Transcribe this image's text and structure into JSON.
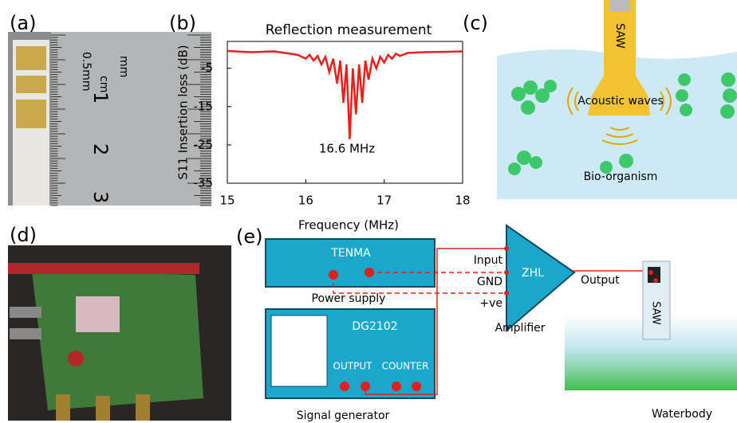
{
  "panels": {
    "a": "(a)",
    "b": "(b)",
    "c": "(c)",
    "d": "(d)",
    "e": "(e)"
  },
  "ruler": {
    "unit_mm": "mm",
    "unit_cm": "cm",
    "fine": "0.5mm",
    "numbers": [
      "1",
      "2",
      "3"
    ]
  },
  "chart_data": {
    "type": "line",
    "title": "Reflection measurement",
    "x_label": "Frequency (MHz)",
    "y_label": "S11 Insertion loss (dB)",
    "annotation": "16.6 MHz",
    "series": [
      {
        "color": "#e8201c",
        "x": [
          15.0,
          15.3,
          15.6,
          15.8,
          15.9,
          16.0,
          16.05,
          16.1,
          16.15,
          16.2,
          16.25,
          16.3,
          16.35,
          16.4,
          16.44,
          16.48,
          16.52,
          16.56,
          16.6,
          16.64,
          16.68,
          16.72,
          16.76,
          16.8,
          16.85,
          16.9,
          16.95,
          17.0,
          17.05,
          17.1,
          17.15,
          17.2,
          17.3,
          17.5,
          17.8,
          18.0
        ],
        "values": [
          -0.5,
          -0.8,
          -0.6,
          -1.2,
          -1.5,
          -2.5,
          -1.5,
          -3,
          -1.8,
          -4,
          -2,
          -6,
          -2.5,
          -9,
          -3,
          -14,
          -4,
          -23.5,
          -5,
          -17,
          -4,
          -14,
          -3,
          -8,
          -2.5,
          -5,
          -2,
          -3.5,
          -1.5,
          -2.5,
          -1.2,
          -1.8,
          -1,
          -0.8,
          -0.7,
          -0.6
        ]
      }
    ],
    "xlim": [
      15,
      18
    ],
    "xticks": [
      15,
      16,
      17,
      18
    ],
    "ylim": [
      -35,
      2
    ],
    "yticks": [
      -5,
      -15,
      -25,
      -35
    ]
  },
  "schematic_c": {
    "device": "SAW",
    "waves": "Acoustic waves",
    "organism": "Bio-organism"
  },
  "schematic_e": {
    "power": {
      "brand": "TENMA",
      "caption": "Power supply"
    },
    "generator": {
      "model": "DG2102",
      "output": "OUTPUT",
      "counter": "COUNTER",
      "caption": "Signal generator"
    },
    "amplifier": {
      "input": "Input",
      "gnd": "GND",
      "ve": "+ve",
      "model": "ZHL",
      "caption": "Amplifier",
      "output": "Output"
    },
    "device": "SAW",
    "water": "Waterbody"
  }
}
